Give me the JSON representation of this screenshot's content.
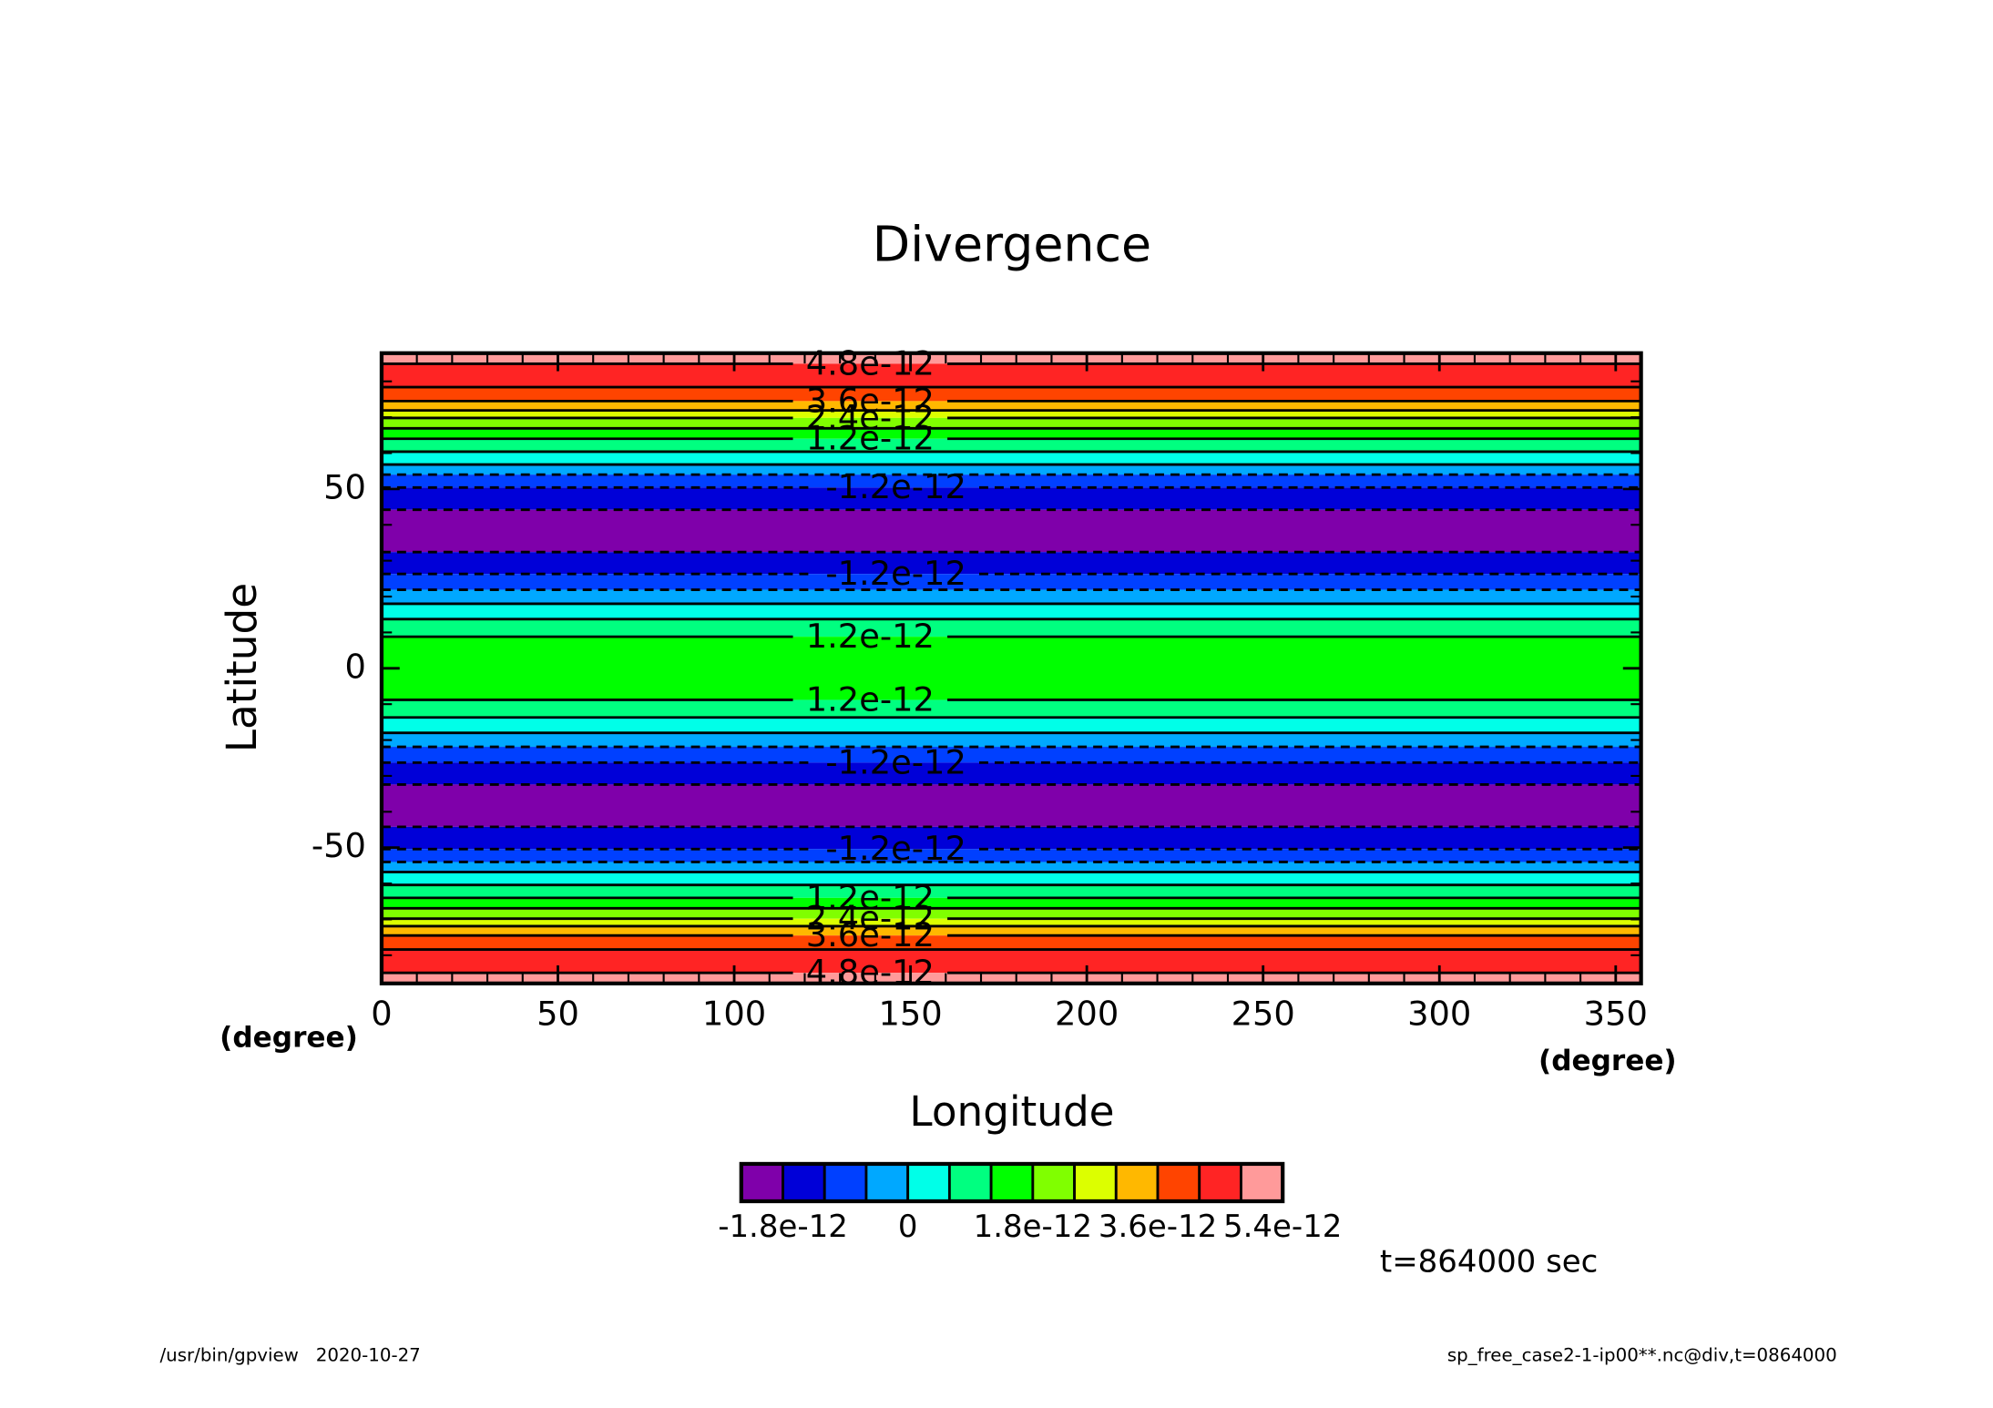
{
  "chart_data": {
    "type": "contour",
    "title": "Divergence",
    "xlabel": "Longitude",
    "ylabel": "Latitude",
    "xunit": "(degree)",
    "yunit": "(degree)",
    "xlim": [
      0,
      357.1875
    ],
    "ylim": [
      -87.86,
      87.86
    ],
    "xticks": [
      0,
      50,
      100,
      150,
      200,
      250,
      300,
      350
    ],
    "yticks": [
      -50,
      0,
      50
    ],
    "xticks_minor": [
      10,
      20,
      30,
      40,
      60,
      70,
      80,
      90,
      110,
      120,
      130,
      140,
      160,
      170,
      180,
      190,
      210,
      220,
      230,
      240,
      260,
      270,
      280,
      290,
      310,
      320,
      330,
      340
    ],
    "yticks_minor": [
      -80,
      -70,
      -60,
      -40,
      -30,
      -20,
      -10,
      10,
      20,
      30,
      40,
      60,
      70,
      80
    ],
    "contours": {
      "lats": [
        84.9,
        78.4,
        74.5,
        71.9,
        69.8,
        66.9,
        64.0,
        60.4,
        56.8,
        54.0,
        50.4,
        44.2,
        32.4,
        26.3,
        21.9,
        18.0,
        13.7,
        8.8,
        -8.8,
        -13.7,
        -18.0,
        -21.9,
        -26.3,
        -32.4,
        -44.2,
        -50.4,
        -54.0,
        -56.8,
        -60.4,
        -64.0,
        -66.9,
        -69.8,
        -71.9,
        -74.5,
        -78.4,
        -84.9
      ],
      "values": [
        4.8e-12,
        4.2e-12,
        3.6e-12,
        3e-12,
        2.4e-12,
        1.8e-12,
        1.2e-12,
        6e-13,
        0,
        -6e-13,
        -1.2e-12,
        -1.8e-12,
        -1.8e-12,
        -1.2e-12,
        -6e-13,
        0,
        6e-13,
        1.2e-12,
        1.2e-12,
        6e-13,
        0,
        -6e-13,
        -1.2e-12,
        -1.8e-12,
        -1.8e-12,
        -1.2e-12,
        -6e-13,
        0,
        6e-13,
        1.2e-12,
        1.8e-12,
        2.4e-12,
        3e-12,
        3.6e-12,
        4.2e-12,
        4.8e-12
      ],
      "labeled": [
        true,
        false,
        true,
        false,
        true,
        false,
        true,
        false,
        false,
        false,
        true,
        false,
        false,
        true,
        false,
        false,
        false,
        true,
        true,
        false,
        false,
        false,
        true,
        false,
        false,
        true,
        false,
        false,
        false,
        true,
        false,
        true,
        false,
        true,
        false,
        true
      ]
    },
    "band_colors": [
      "#ff9a9a",
      "#ff2424",
      "#ff4400",
      "#ffb800",
      "#dcff00",
      "#80ff00",
      "#00ff00",
      "#00ff80",
      "#00ffe8",
      "#00a8ff",
      "#0040ff",
      "#0000d8",
      "#7f00aa",
      "#0000d8",
      "#0040ff",
      "#00a8ff",
      "#00ffe8",
      "#00ff80",
      "#00ff00",
      "#00ff80",
      "#00ffe8",
      "#00a8ff",
      "#0040ff",
      "#0000d8",
      "#7f00aa",
      "#0000d8",
      "#0040ff",
      "#00a8ff",
      "#00ffe8",
      "#00ff80",
      "#00ff00",
      "#80ff00",
      "#dcff00",
      "#ffb800",
      "#ff4400",
      "#ff2424",
      "#ff9a9a"
    ],
    "colorbar": {
      "levels": [
        -2.4e-12,
        -1.8e-12,
        -1.2e-12,
        -6e-13,
        0,
        6e-13,
        1.2e-12,
        1.8e-12,
        2.4e-12,
        3e-12,
        3.6e-12,
        4.2e-12,
        4.8e-12,
        5.4e-12
      ],
      "colors": [
        "#7f00aa",
        "#0000d8",
        "#0040ff",
        "#00a8ff",
        "#00ffe8",
        "#00ff80",
        "#00ff00",
        "#80ff00",
        "#dcff00",
        "#ffb800",
        "#ff4400",
        "#ff2424",
        "#ff9a9a"
      ],
      "ticks": [
        -1.8e-12,
        0,
        1.8e-12,
        3.6e-12,
        5.4e-12
      ]
    },
    "time_label": "t=864000 sec",
    "footer_left": "/usr/bin/gpview   2020-10-27",
    "footer_right": "sp_free_case2-1-ip00**.nc@div,t=0864000"
  }
}
